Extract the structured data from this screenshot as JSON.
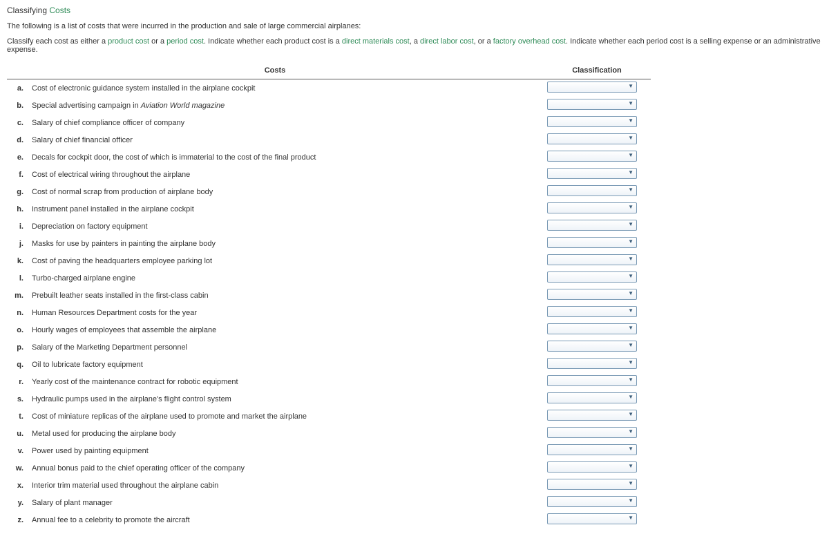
{
  "title": {
    "word1": "Classifying",
    "word2": "Costs"
  },
  "intro": "The following is a list of costs that were incurred in the production and sale of large commercial airplanes:",
  "instr": {
    "p1": "Classify each cost as either a ",
    "t1": "product cost",
    "p2": " or a ",
    "t2": "period cost",
    "p3": ". Indicate whether each product cost is a ",
    "t3": "direct materials cost",
    "p4": ", a ",
    "t4": "direct labor cost",
    "p5": ", or a ",
    "t5": "factory overhead cost",
    "p6": ". Indicate whether each period cost is a selling expense or an administrative expense."
  },
  "headers": {
    "costs": "Costs",
    "classification": "Classification"
  },
  "rows": [
    {
      "letter": "a.",
      "desc": "Cost of electronic guidance system installed in the airplane cockpit",
      "italic": false
    },
    {
      "letter": "b.",
      "desc": "Special advertising campaign in Aviation World magazine",
      "italic": true,
      "italicStart": 32,
      "italicEnd": 55
    },
    {
      "letter": "c.",
      "desc": "Salary of chief compliance officer of company",
      "italic": false
    },
    {
      "letter": "d.",
      "desc": "Salary of chief financial officer",
      "italic": false
    },
    {
      "letter": "e.",
      "desc": "Decals for cockpit door, the cost of which is immaterial to the cost of the final product",
      "italic": false
    },
    {
      "letter": "f.",
      "desc": "Cost of electrical wiring throughout the airplane",
      "italic": false
    },
    {
      "letter": "g.",
      "desc": "Cost of normal scrap from production of airplane body",
      "italic": false
    },
    {
      "letter": "h.",
      "desc": "Instrument panel installed in the airplane cockpit",
      "italic": false
    },
    {
      "letter": "i.",
      "desc": "Depreciation on factory equipment",
      "italic": false
    },
    {
      "letter": "j.",
      "desc": "Masks for use by painters in painting the airplane body",
      "italic": false
    },
    {
      "letter": "k.",
      "desc": "Cost of paving the headquarters employee parking lot",
      "italic": false
    },
    {
      "letter": "l.",
      "desc": "Turbo-charged airplane engine",
      "italic": false
    },
    {
      "letter": "m.",
      "desc": "Prebuilt leather seats installed in the first-class cabin",
      "italic": false
    },
    {
      "letter": "n.",
      "desc": "Human Resources Department costs for the year",
      "italic": false
    },
    {
      "letter": "o.",
      "desc": "Hourly wages of employees that assemble the airplane",
      "italic": false
    },
    {
      "letter": "p.",
      "desc": "Salary of the Marketing Department personnel",
      "italic": false
    },
    {
      "letter": "q.",
      "desc": "Oil to lubricate factory equipment",
      "italic": false
    },
    {
      "letter": "r.",
      "desc": "Yearly cost of the maintenance contract for robotic equipment",
      "italic": false
    },
    {
      "letter": "s.",
      "desc": "Hydraulic pumps used in the airplane's flight control system",
      "italic": false
    },
    {
      "letter": "t.",
      "desc": "Cost of miniature replicas of the airplane used to promote and market the airplane",
      "italic": false
    },
    {
      "letter": "u.",
      "desc": "Metal used for producing the airplane body",
      "italic": false
    },
    {
      "letter": "v.",
      "desc": "Power used by painting equipment",
      "italic": false
    },
    {
      "letter": "w.",
      "desc": "Annual bonus paid to the chief operating officer of the company",
      "italic": false
    },
    {
      "letter": "x.",
      "desc": "Interior trim material used throughout the airplane cabin",
      "italic": false
    },
    {
      "letter": "y.",
      "desc": "Salary of plant manager",
      "italic": false
    },
    {
      "letter": "z.",
      "desc": "Annual fee to a celebrity to promote the aircraft",
      "italic": false
    }
  ],
  "colors": {
    "green": "#2e8b57",
    "text": "#333333",
    "dropdown_border": "#7a9ab5"
  }
}
